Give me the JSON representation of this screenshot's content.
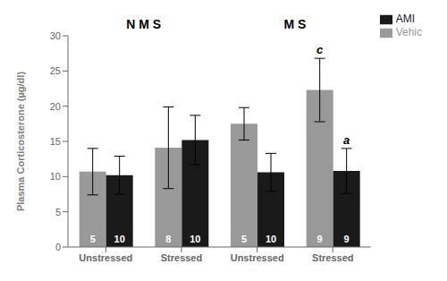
{
  "chart_data": {
    "type": "bar",
    "categories": [
      "Unstressed",
      "Stressed",
      "Unstressed",
      "Stressed"
    ],
    "category_groups": [
      "N M S",
      "N M S",
      "M S",
      "M S"
    ],
    "y_label": "Plasma Corticosterone (µg/dl)",
    "series": [
      {
        "name": "Vehic",
        "color": "#999999",
        "values": [
          10.7,
          14.1,
          17.5,
          22.3
        ],
        "errors": [
          3.3,
          5.8,
          2.3,
          4.5
        ],
        "counts": [
          5,
          8,
          5,
          9
        ],
        "annotations": [
          null,
          null,
          null,
          "c"
        ]
      },
      {
        "name": "AMI",
        "color": "#1a1a1a",
        "values": [
          10.2,
          15.2,
          10.6,
          10.8
        ],
        "errors": [
          2.7,
          3.5,
          2.7,
          3.2
        ],
        "counts": [
          10,
          10,
          10,
          9
        ],
        "annotations": [
          null,
          null,
          null,
          "a"
        ]
      }
    ],
    "ylim": [
      0,
      30
    ],
    "yticks": [
      0,
      5,
      10,
      15,
      20,
      25,
      30
    ],
    "grid": false,
    "legend": "upper right"
  }
}
